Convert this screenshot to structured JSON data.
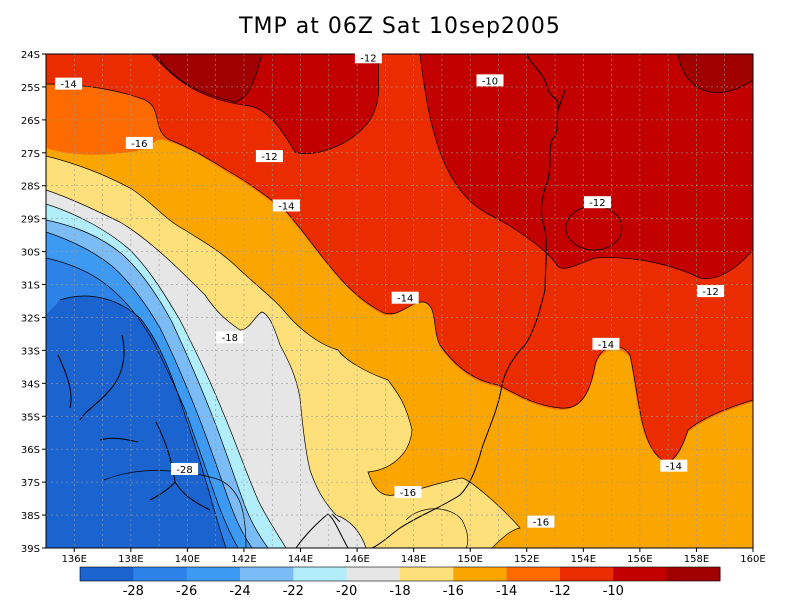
{
  "title": "TMP at 06Z Sat 10sep2005",
  "chart_data": {
    "type": "heatmap",
    "title": "TMP at 06Z Sat 10sep2005",
    "x_ticks": [
      "136E",
      "138E",
      "140E",
      "142E",
      "144E",
      "146E",
      "148E",
      "150E",
      "152E",
      "154E",
      "156E",
      "158E",
      "160E"
    ],
    "y_ticks": [
      "24S",
      "25S",
      "26S",
      "27S",
      "28S",
      "29S",
      "30S",
      "31S",
      "32S",
      "33S",
      "34S",
      "35S",
      "36S",
      "37S",
      "38S",
      "39S"
    ],
    "xlim": [
      135,
      160
    ],
    "ylim": [
      -39,
      -24
    ],
    "grid": true,
    "colorbar": {
      "labels": [
        "-28",
        "-26",
        "-24",
        "-22",
        "-20",
        "-18",
        "-16",
        "-14",
        "-12",
        "-10"
      ],
      "levels": [
        -30,
        -28,
        -26,
        -24,
        -22,
        -20,
        -18,
        -16,
        -14,
        -12,
        -10,
        -8
      ],
      "colors": [
        "#1b64d0",
        "#2c82e6",
        "#3c9af2",
        "#7bbcf6",
        "#b2eefa",
        "#e6e6e6",
        "#fde07a",
        "#fba500",
        "#fd6a00",
        "#eb2c00",
        "#c20000",
        "#a00000"
      ]
    },
    "contour_labels": [
      {
        "text": "-14",
        "lon": 135.8,
        "lat": -24.9
      },
      {
        "text": "-12",
        "lon": 146.4,
        "lat": -24.1
      },
      {
        "text": "-10",
        "lon": 150.7,
        "lat": -24.8
      },
      {
        "text": "-16",
        "lon": 138.3,
        "lat": -26.7
      },
      {
        "text": "-12",
        "lon": 142.9,
        "lat": -27.1
      },
      {
        "text": "-14",
        "lon": 143.5,
        "lat": -28.6
      },
      {
        "text": "-12",
        "lon": 154.5,
        "lat": -28.5
      },
      {
        "text": "-14",
        "lon": 147.7,
        "lat": -31.4
      },
      {
        "text": "-12",
        "lon": 158.5,
        "lat": -31.2
      },
      {
        "text": "-18",
        "lon": 141.5,
        "lat": -32.6
      },
      {
        "text": "-14",
        "lon": 154.8,
        "lat": -32.8
      },
      {
        "text": "-14",
        "lon": 157.2,
        "lat": -36.5
      },
      {
        "text": "-28",
        "lon": 139.9,
        "lat": -36.6
      },
      {
        "text": "-16",
        "lon": 147.8,
        "lat": -37.3
      },
      {
        "text": "-16",
        "lon": 152.5,
        "lat": -38.2
      }
    ]
  }
}
